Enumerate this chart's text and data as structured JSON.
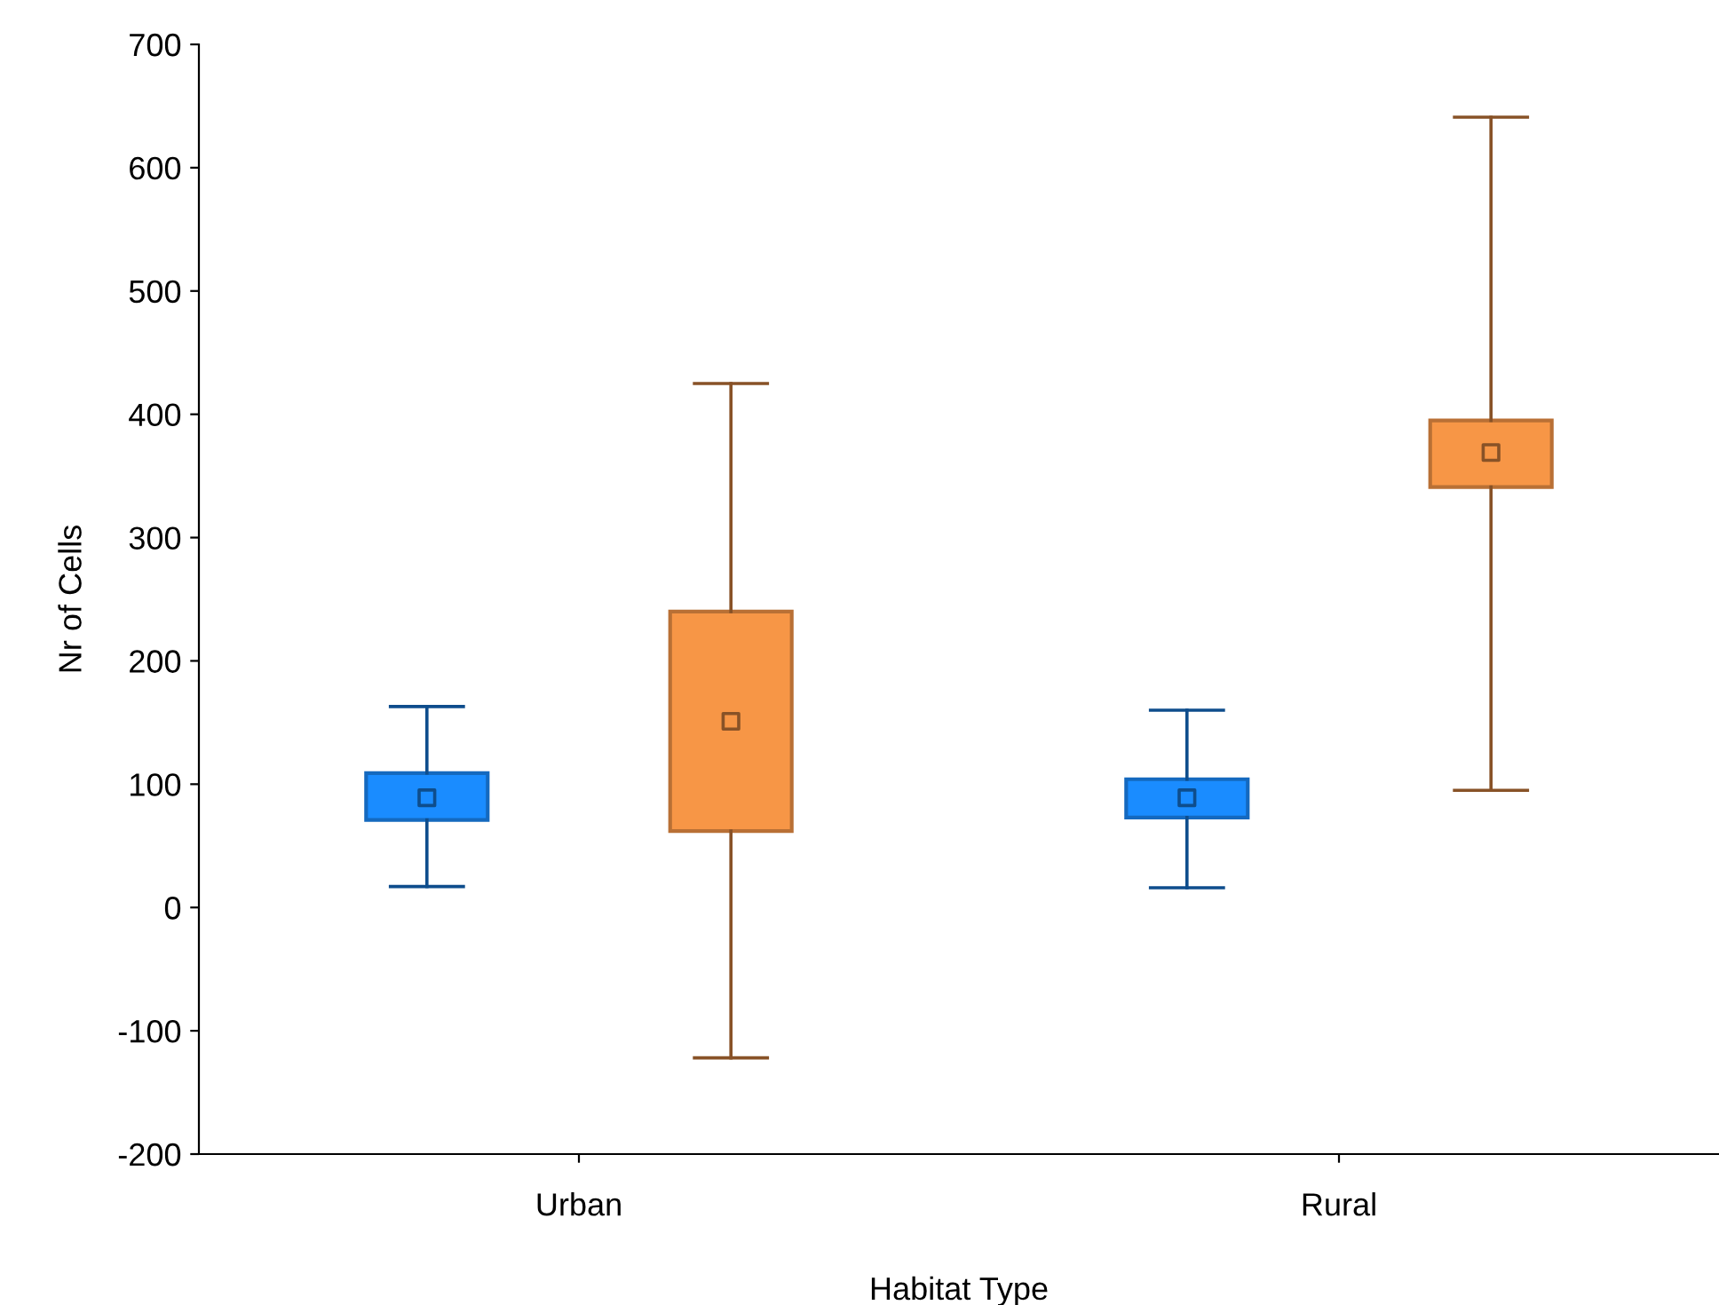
{
  "chart_data": {
    "type": "box",
    "xlabel": "Habitat Type",
    "ylabel": "Nr of Cells",
    "categories": [
      "Urban",
      "Rural"
    ],
    "ylim": [
      -200,
      700
    ],
    "yticks": [
      -200,
      -100,
      0,
      100,
      200,
      300,
      400,
      500,
      600,
      700
    ],
    "grid": false,
    "legend": false,
    "marker": "square",
    "series": [
      {
        "color": "#1a8cff",
        "boxes": [
          {
            "low": 17,
            "q1": 71,
            "median": 89,
            "q3": 109,
            "high": 163
          },
          {
            "low": 16,
            "q1": 73,
            "median": 89,
            "q3": 104,
            "high": 160
          }
        ]
      },
      {
        "color": "#f79646",
        "boxes": [
          {
            "low": -122,
            "q1": 62,
            "median": 151,
            "q3": 240,
            "high": 425
          },
          {
            "low": 95,
            "q1": 341,
            "median": 369,
            "q3": 395,
            "high": 641
          }
        ]
      }
    ]
  }
}
